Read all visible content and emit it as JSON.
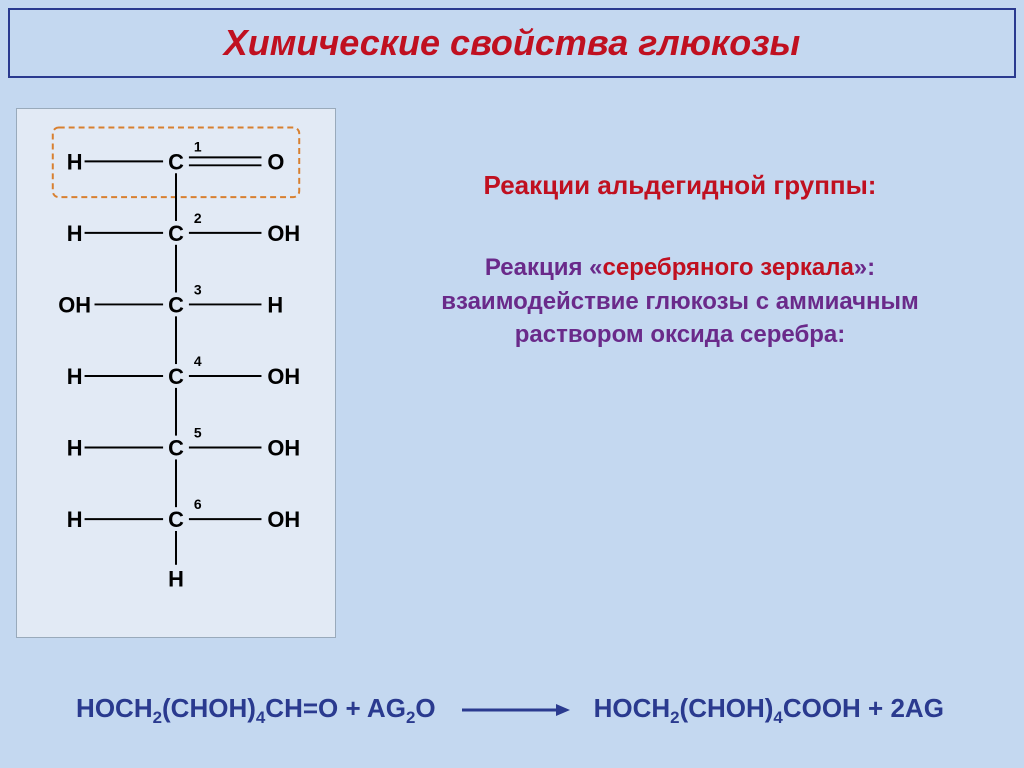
{
  "title": "Химические свойства глюкозы",
  "section_heading": "Реакции альдегидной группы:",
  "reaction_label_prefix": "Реакция «",
  "reaction_label_highlight": "серебряного зеркала",
  "reaction_label_suffix": "»:",
  "reaction_desc_l1": "взаимодействие глюкозы с аммиачным",
  "reaction_desc_l2": "раствором оксида серебра:",
  "equation": {
    "lhs_parts": [
      "HOCH",
      "2",
      "(CHOH)",
      "4",
      "CH=O + A",
      "G",
      "2",
      "O"
    ],
    "rhs_parts": [
      "HOCH",
      "2",
      "(CHOH)",
      "4",
      "COOH + 2A",
      "G"
    ]
  },
  "structure": {
    "carbons": [
      {
        "n": "1",
        "left": "H",
        "right": "O",
        "double_right": true
      },
      {
        "n": "2",
        "left": "H",
        "right": "OH"
      },
      {
        "n": "3",
        "left": "OH",
        "right": "H"
      },
      {
        "n": "4",
        "left": "H",
        "right": "OH"
      },
      {
        "n": "5",
        "left": "H",
        "right": "OH"
      },
      {
        "n": "6",
        "left": "H",
        "right": "OH"
      }
    ],
    "bottom": "H"
  },
  "colors": {
    "bg": "#c4d8f0",
    "panel": "#e2eaf5",
    "title": "#c01020",
    "accent": "#2a3a8f",
    "accent2": "#6a2a8a",
    "highlight": "#d88030"
  }
}
